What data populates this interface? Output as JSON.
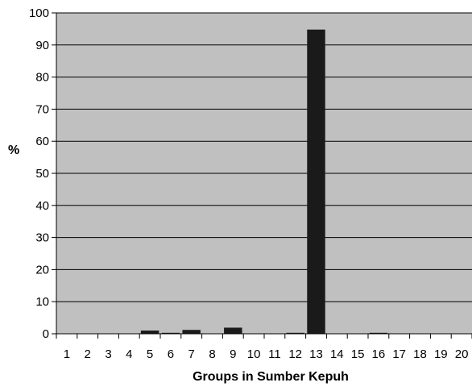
{
  "chart_data": {
    "type": "bar",
    "title": "",
    "xlabel": "Groups in Sumber Kepuh",
    "ylabel": "%",
    "categories": [
      "1",
      "2",
      "3",
      "4",
      "5",
      "6",
      "7",
      "8",
      "9",
      "10",
      "11",
      "12",
      "13",
      "14",
      "15",
      "16",
      "17",
      "18",
      "19",
      "20"
    ],
    "values": [
      0,
      0,
      0,
      0,
      1,
      0.3,
      1.2,
      0,
      1.9,
      0,
      0,
      0.3,
      94.8,
      0,
      0,
      0.3,
      0,
      0,
      0,
      0
    ],
    "ylim": [
      0,
      100
    ],
    "yticks": [
      0,
      10,
      20,
      30,
      40,
      50,
      60,
      70,
      80,
      90,
      100
    ],
    "grid": true,
    "legend": "none",
    "colors": {
      "plot_background": "#c0c0c0",
      "bar": "#1a1a1a",
      "gridline": "#000000"
    }
  }
}
